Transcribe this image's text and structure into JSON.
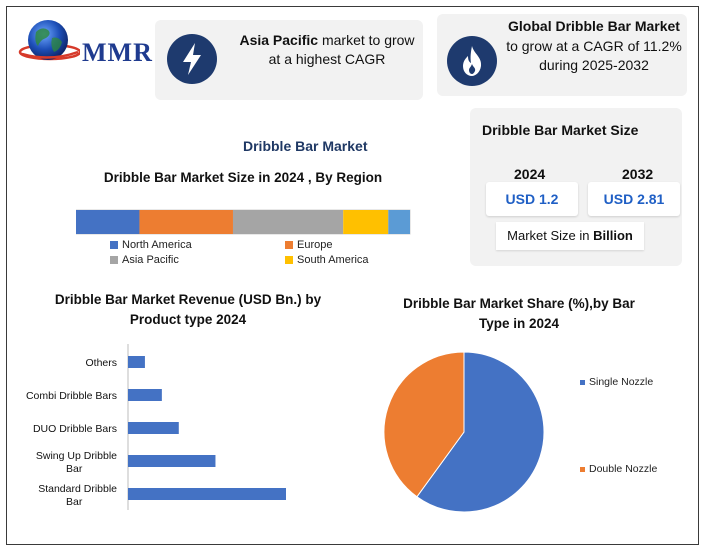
{
  "brand": {
    "logo_text": "MMR"
  },
  "highlights": [
    {
      "bold": "Asia Pacific",
      "text": " market to grow at a highest CAGR",
      "icon": "lightning-icon"
    },
    {
      "bold": "Global Dribble Bar Market",
      "text": "to grow at a CAGR of 11.2% during 2025-2032",
      "icon": "flame-icon"
    }
  ],
  "market_size": {
    "title": "Dribble Bar Market Size",
    "years": [
      "2024",
      "2032"
    ],
    "values": [
      "USD 1.2",
      "USD 2.81"
    ],
    "unit_prefix": "Market Size in ",
    "unit_bold": "Billion"
  },
  "main_title": "Dribble Bar Market",
  "colors": {
    "blue": "#4472c4",
    "orange": "#ed7d31",
    "gray": "#a5a5a5",
    "yellow": "#ffc000",
    "light_blue": "#5b9bd5"
  },
  "chart_data": [
    {
      "type": "bar",
      "orientation": "horizontal-stacked",
      "title": "Dribble Bar Market Size in 2024 , By Region",
      "series": [
        {
          "name": "North America",
          "value": 19,
          "color": "#4472c4"
        },
        {
          "name": "Europe",
          "value": 28,
          "color": "#ed7d31"
        },
        {
          "name": "Asia Pacific",
          "value": 33,
          "color": "#a5a5a5"
        },
        {
          "name": "South America",
          "value": 13.5,
          "color": "#ffc000"
        },
        {
          "name": "",
          "value": 6.5,
          "color": "#5b9bd5"
        }
      ],
      "legend_placement": "bottom"
    },
    {
      "type": "bar",
      "orientation": "horizontal",
      "title": "Dribble Bar Market Revenue (USD Bn.) by Product type 2024",
      "categories": [
        "Others",
        "Combi Dribble Bars",
        "DUO Dribble Bars",
        "Swing Up Dribble Bar",
        "Standard Dribble Bar"
      ],
      "values": [
        0.06,
        0.12,
        0.18,
        0.31,
        0.56
      ],
      "color": "#4472c4"
    },
    {
      "type": "pie",
      "title": "Dribble Bar Market Share (%),by Bar Type in 2024",
      "series": [
        {
          "name": "Single Nozzle",
          "value": 60,
          "color": "#4472c4"
        },
        {
          "name": "Double Nozzle",
          "value": 40,
          "color": "#ed7d31"
        }
      ],
      "legend_placement": "right"
    }
  ]
}
